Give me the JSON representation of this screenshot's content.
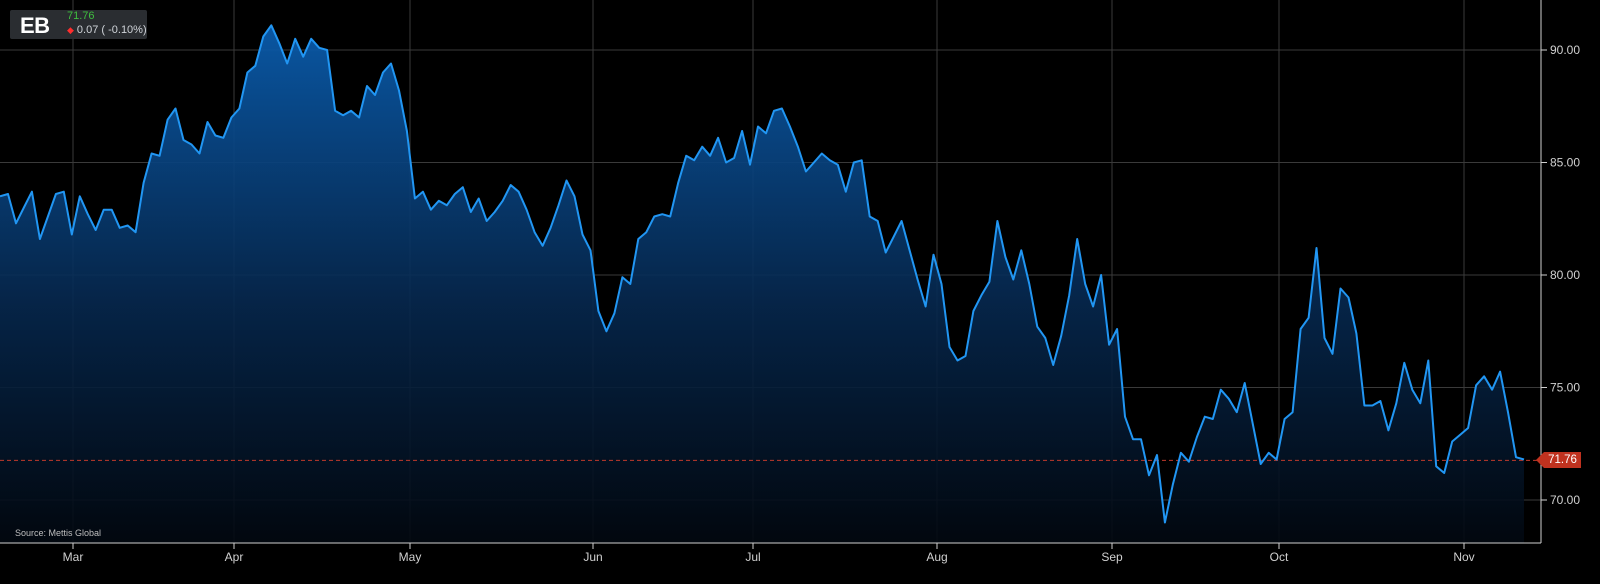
{
  "ticker": {
    "symbol": "EB",
    "price": "71.76",
    "change": "0.07 ( -0.10%)"
  },
  "source": "Source: Mettis Global",
  "colors": {
    "line": "#2196f3",
    "ref_line": "#c0392b",
    "price_tag": "#c0321f",
    "grid": "#3a3a3a"
  },
  "chart_data": {
    "type": "area",
    "series": [
      {
        "values": [
          83.5,
          83.6,
          82.3,
          83.0,
          83.7,
          81.6,
          82.6,
          83.6,
          83.7,
          81.8,
          83.5,
          82.7,
          82.0,
          82.9,
          82.9,
          82.1,
          82.2,
          81.9,
          84.1,
          85.4,
          85.3,
          86.9,
          87.4,
          86.0,
          85.8,
          85.4,
          86.8,
          86.2,
          86.1,
          87.0,
          87.4,
          89.0,
          89.3,
          90.6,
          91.1,
          90.3,
          89.4,
          90.5,
          89.7,
          90.5,
          90.1,
          90.0,
          87.3,
          87.1,
          87.3,
          87.0,
          88.4,
          88.0,
          89.0,
          89.4,
          88.2,
          86.4,
          83.4,
          83.7,
          82.9,
          83.3,
          83.1,
          83.6,
          83.9,
          82.8,
          83.4,
          82.4,
          82.8,
          83.3,
          84.0,
          83.7,
          82.9,
          81.9,
          81.3,
          82.1,
          83.1,
          84.2,
          83.5,
          81.8,
          81.1,
          78.4,
          77.5,
          78.3,
          79.9,
          79.6,
          81.6,
          81.9,
          82.6,
          82.7,
          82.6,
          84.1,
          85.3,
          85.1,
          85.7,
          85.3,
          86.1,
          85.0,
          85.2,
          86.4,
          84.9,
          86.6,
          86.3,
          87.3,
          87.4,
          86.6,
          85.7,
          84.6,
          85.0,
          85.4,
          85.1,
          84.9,
          83.7,
          85.0,
          85.1,
          82.6,
          82.4,
          81.0,
          81.7,
          82.4,
          81.1,
          79.8,
          78.6,
          80.9,
          79.6,
          76.8,
          76.2,
          76.4,
          78.4,
          79.1,
          79.7,
          82.4,
          80.8,
          79.8,
          81.1,
          79.6,
          77.7,
          77.2,
          76.0,
          77.3,
          79.1,
          81.6,
          79.6,
          78.6,
          80.0,
          76.9,
          77.6,
          73.7,
          72.7,
          72.7,
          71.1,
          72.0,
          69.0,
          70.7,
          72.1,
          71.7,
          72.8,
          73.7,
          73.6,
          74.9,
          74.5,
          73.9,
          75.2,
          73.4,
          71.6,
          72.1,
          71.8,
          73.6,
          73.9,
          77.6,
          78.1,
          81.2,
          77.2,
          76.5,
          79.4,
          79.0,
          77.4,
          74.2,
          74.2,
          74.4,
          73.1,
          74.3,
          76.1,
          74.9,
          74.3,
          76.2,
          71.5,
          71.2,
          72.6,
          72.9,
          73.2,
          75.1,
          75.5,
          74.9,
          75.7,
          73.9,
          71.9,
          71.8
        ]
      }
    ],
    "x_labels": [
      "Mar",
      "Apr",
      "May",
      "Jun",
      "Jul",
      "Aug",
      "Sep",
      "Oct",
      "Nov"
    ],
    "y_ticks": [
      "70.00",
      "75.00",
      "80.00",
      "85.00",
      "90.00"
    ],
    "ylim": [
      67.9,
      92.2
    ],
    "last_value": 71.76,
    "last_label": "71.76",
    "grid": true
  }
}
